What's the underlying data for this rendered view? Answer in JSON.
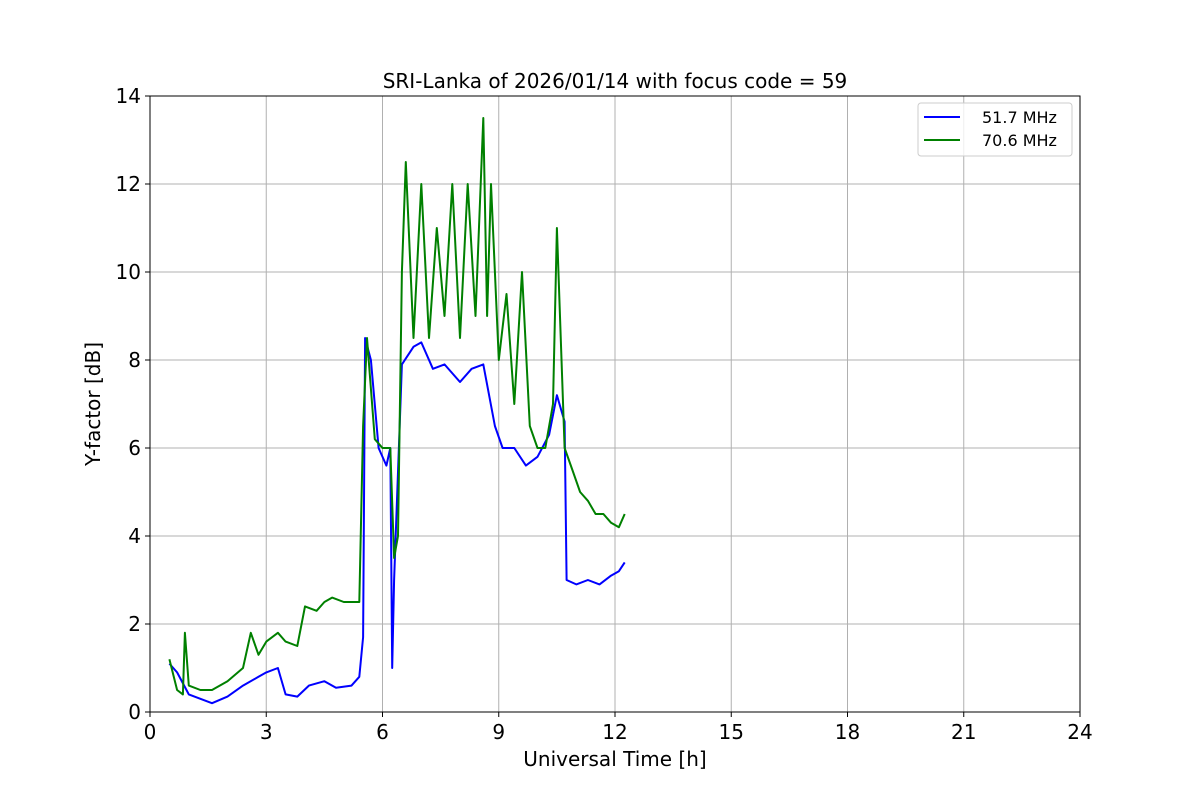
{
  "chart_data": {
    "type": "line",
    "title": "SRI-Lanka of 2026/01/14 with focus code = 59",
    "xlabel": "Universal Time [h]",
    "ylabel": "Y-factor [dB]",
    "xlim": [
      0,
      24
    ],
    "ylim": [
      0,
      14
    ],
    "xticks": [
      0,
      3,
      6,
      9,
      12,
      15,
      18,
      21,
      24
    ],
    "yticks": [
      0,
      2,
      4,
      6,
      8,
      10,
      12,
      14
    ],
    "xtick_labels": [
      "0",
      "3",
      "6",
      "9",
      "12",
      "15",
      "18",
      "21",
      "24"
    ],
    "ytick_labels": [
      "0",
      "2",
      "4",
      "6",
      "8",
      "10",
      "12",
      "14"
    ],
    "grid": true,
    "legend_position": "top-right",
    "series": [
      {
        "name": "51.7 MHz",
        "color": "#0000ff",
        "x": [
          0.5,
          0.7,
          1.0,
          1.3,
          1.6,
          2.0,
          2.4,
          2.8,
          3.0,
          3.3,
          3.5,
          3.8,
          4.1,
          4.5,
          4.8,
          5.2,
          5.4,
          5.5,
          5.55,
          5.7,
          5.9,
          6.1,
          6.2,
          6.25,
          6.3,
          6.5,
          6.8,
          7.0,
          7.3,
          7.6,
          8.0,
          8.3,
          8.6,
          8.9,
          9.1,
          9.4,
          9.7,
          10.0,
          10.3,
          10.5,
          10.7,
          10.75,
          11.0,
          11.3,
          11.6,
          11.9,
          12.1,
          12.25
        ],
        "y": [
          1.1,
          0.9,
          0.4,
          0.3,
          0.2,
          0.35,
          0.6,
          0.8,
          0.9,
          1.0,
          0.4,
          0.35,
          0.6,
          0.7,
          0.55,
          0.6,
          0.8,
          1.7,
          8.5,
          8.0,
          6.0,
          5.6,
          6.0,
          1.0,
          3.0,
          7.9,
          8.3,
          8.4,
          7.8,
          7.9,
          7.5,
          7.8,
          7.9,
          6.5,
          6.0,
          6.0,
          5.6,
          5.8,
          6.3,
          7.2,
          6.6,
          3.0,
          2.9,
          3.0,
          2.9,
          3.1,
          3.2,
          3.4
        ]
      },
      {
        "name": "70.6 MHz",
        "color": "#008000",
        "x": [
          0.5,
          0.7,
          0.85,
          0.9,
          1.0,
          1.3,
          1.6,
          2.0,
          2.4,
          2.6,
          2.8,
          3.0,
          3.3,
          3.5,
          3.8,
          4.0,
          4.3,
          4.5,
          4.7,
          5.0,
          5.2,
          5.4,
          5.5,
          5.6,
          5.8,
          6.0,
          6.2,
          6.3,
          6.4,
          6.5,
          6.6,
          6.8,
          7.0,
          7.2,
          7.4,
          7.6,
          7.8,
          8.0,
          8.2,
          8.4,
          8.6,
          8.7,
          8.8,
          9.0,
          9.2,
          9.4,
          9.6,
          9.8,
          10.0,
          10.2,
          10.4,
          10.5,
          10.7,
          10.9,
          11.1,
          11.3,
          11.5,
          11.7,
          11.9,
          12.1,
          12.25
        ],
        "y": [
          1.2,
          0.5,
          0.4,
          1.8,
          0.6,
          0.5,
          0.5,
          0.7,
          1.0,
          1.8,
          1.3,
          1.6,
          1.8,
          1.6,
          1.5,
          2.4,
          2.3,
          2.5,
          2.6,
          2.5,
          2.5,
          2.5,
          6.5,
          8.5,
          6.2,
          6.0,
          6.0,
          3.5,
          4.0,
          10.0,
          12.5,
          8.5,
          12.0,
          8.5,
          11.0,
          9.0,
          12.0,
          8.5,
          12.0,
          9.0,
          13.5,
          9.0,
          12.0,
          8.0,
          9.5,
          7.0,
          10.0,
          6.5,
          6.0,
          6.0,
          7.0,
          11.0,
          6.0,
          5.5,
          5.0,
          4.8,
          4.5,
          4.5,
          4.3,
          4.2,
          4.5
        ]
      }
    ]
  }
}
